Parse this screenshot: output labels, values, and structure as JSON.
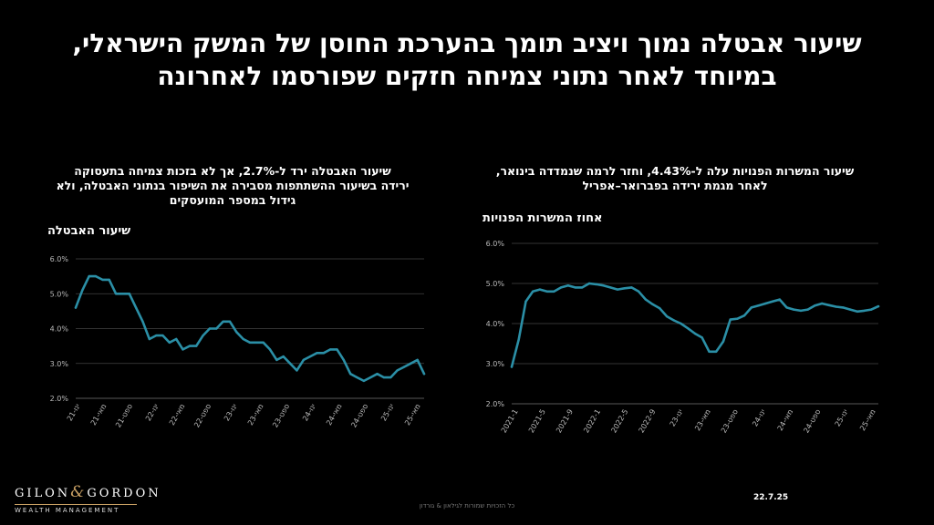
{
  "slide": {
    "title_line1": "שיעור אבטלה נמוך ויציב תומך בהערכת החוסן של המשק הישראלי,",
    "title_line2": "במיוחד לאחר נתוני צמיחה חזקים שפורסמו לאחרונה",
    "date": "22.7.25",
    "footer": "כל הזכויות שמורות לגילאון & גורדון",
    "logo_text_1": "GILON",
    "logo_amp": "&",
    "logo_text_2": "GORDON",
    "logo_sub": "WEALTH MANAGEMENT"
  },
  "left_panel": {
    "subtitle_line1": "שיעור האבטלה ירד ל-2.7%, אך לא בזכות צמיחה בתעסוקה",
    "subtitle_line2": "ירידה בשיעור ההשתתפות מסבירה את השיפור בנתוני האבטלה, ולא",
    "subtitle_line3": "גידול במספר המועסקים",
    "ylabel": "שיעור האבטלה"
  },
  "right_panel": {
    "subtitle_line1": "שיעור המשרות הפנויות עלה ל-4.43%, וחזר לרמה שנמדדה בינואר,",
    "subtitle_line2": "לאחר מגמת ירידה בפברואר–אפריל",
    "ylabel": "אחוז המשרות הפנויות"
  },
  "chart_data": [
    {
      "type": "line",
      "ylabel": "שיעור האבטלה",
      "ylim": [
        0.02,
        0.06
      ],
      "yticks": [
        "2.0%",
        "3.0%",
        "4.0%",
        "5.0%",
        "6.0%"
      ],
      "xtick_labels": [
        "ינו-21",
        "מאי-21",
        "ספט-21",
        "ינו-22",
        "מאי-22",
        "ספט-22",
        "ינו-23",
        "מאי-23",
        "ספט-23",
        "ינו-24",
        "מאי-24",
        "ספט-24",
        "ינו-25",
        "מאי-25"
      ],
      "grid": true,
      "line_color": "#2b8fa6",
      "series": [
        {
          "x": [
            0,
            1,
            2,
            3,
            4,
            5,
            6,
            7,
            8,
            9,
            10,
            11,
            12,
            13,
            14,
            15,
            16,
            17,
            18,
            19,
            20,
            21,
            22,
            23,
            24,
            25,
            26,
            27,
            28,
            29,
            30,
            31,
            32,
            33,
            34,
            35,
            36,
            37,
            38,
            39,
            40,
            41,
            42,
            43,
            44,
            45,
            46,
            47,
            48,
            49,
            50,
            51,
            52
          ],
          "values": [
            0.046,
            0.051,
            0.055,
            0.055,
            0.054,
            0.054,
            0.05,
            0.05,
            0.05,
            0.046,
            0.042,
            0.037,
            0.038,
            0.038,
            0.036,
            0.037,
            0.034,
            0.035,
            0.035,
            0.038,
            0.04,
            0.04,
            0.042,
            0.042,
            0.039,
            0.037,
            0.036,
            0.036,
            0.036,
            0.034,
            0.031,
            0.032,
            0.03,
            0.028,
            0.031,
            0.032,
            0.033,
            0.033,
            0.034,
            0.034,
            0.031,
            0.027,
            0.026,
            0.025,
            0.026,
            0.027,
            0.026,
            0.026,
            0.028,
            0.029,
            0.03,
            0.031,
            0.027
          ]
        }
      ]
    },
    {
      "type": "line",
      "ylabel": "אחוז המשרות הפנויות",
      "ylim": [
        0.02,
        0.06
      ],
      "yticks": [
        "2.0%",
        "3.0%",
        "4.0%",
        "5.0%",
        "6.0%"
      ],
      "xtick_labels": [
        "2021-1",
        "2021-5",
        "2021-9",
        "2022-1",
        "2022-5",
        "2022-9",
        "ינו-23",
        "מאי-23",
        "ספט-23",
        "ינו-24",
        "מאי-24",
        "ספט-24",
        "ינו-25",
        "מאי-25"
      ],
      "grid": true,
      "line_color": "#2b8fa6",
      "series": [
        {
          "x": [
            0,
            1,
            2,
            3,
            4,
            5,
            6,
            7,
            8,
            9,
            10,
            11,
            12,
            13,
            14,
            15,
            16,
            17,
            18,
            19,
            20,
            21,
            22,
            23,
            24,
            25,
            26,
            27,
            28,
            29,
            30,
            31,
            32,
            33,
            34,
            35,
            36,
            37,
            38,
            39,
            40,
            41,
            42,
            43,
            44,
            45,
            46,
            47,
            48,
            49,
            50,
            51,
            52
          ],
          "values": [
            0.0292,
            0.036,
            0.0455,
            0.048,
            0.0485,
            0.048,
            0.048,
            0.049,
            0.0495,
            0.049,
            0.049,
            0.05,
            0.0498,
            0.0495,
            0.049,
            0.0485,
            0.0488,
            0.049,
            0.048,
            0.046,
            0.0448,
            0.0438,
            0.0418,
            0.0408,
            0.04,
            0.0388,
            0.0375,
            0.0365,
            0.033,
            0.033,
            0.0355,
            0.041,
            0.0412,
            0.042,
            0.044,
            0.0445,
            0.045,
            0.0455,
            0.046,
            0.044,
            0.0435,
            0.0432,
            0.0435,
            0.0445,
            0.045,
            0.0446,
            0.0442,
            0.044,
            0.0435,
            0.043,
            0.0432,
            0.0435,
            0.0443
          ]
        }
      ]
    }
  ]
}
